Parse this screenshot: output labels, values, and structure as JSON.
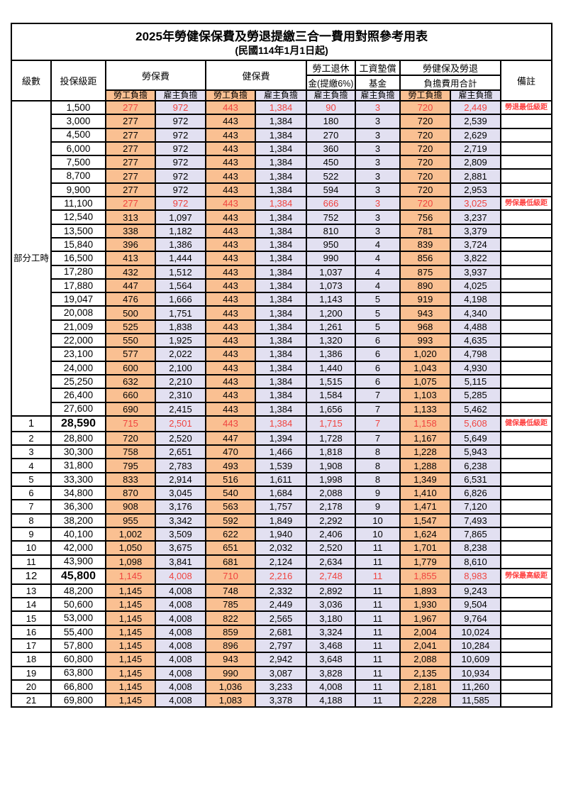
{
  "title": "2025年勞健保保費及勞退提繳三合一費用對照參考用表",
  "subtitle": "(民國114年1月1日起)",
  "header": {
    "level": "級數",
    "bracket": "投保級距",
    "labor_insurance": "勞保費",
    "health_insurance": "健保費",
    "pension_line1": "勞工退休",
    "pension_line2": "金(提繳6%)",
    "wage_fund_line1": "工資墊償",
    "wage_fund_line2": "基金",
    "total_line1": "勞健保及勞退",
    "total_line2": "負擔費用合計",
    "note": "備註",
    "employee_share": "勞工負擔",
    "employer_share": "雇主負擔"
  },
  "part_time_label": "部分工時",
  "part_time_rowspan": 23,
  "colors": {
    "employee_bg": "#fac092",
    "employer_bg": "#e2e0f1",
    "highlight_red": "#f0433f",
    "border": "#000000"
  },
  "rows": [
    {
      "level": "",
      "bracket": "1,500",
      "li_emp": "277",
      "li_er": "972",
      "hi_emp": "443",
      "hi_er": "1,384",
      "pen_er": "90",
      "fund_er": "3",
      "tot_emp": "720",
      "tot_er": "2,449",
      "note": "勞退最低級距",
      "red": true,
      "bold": false
    },
    {
      "level": "",
      "bracket": "3,000",
      "li_emp": "277",
      "li_er": "972",
      "hi_emp": "443",
      "hi_er": "1,384",
      "pen_er": "180",
      "fund_er": "3",
      "tot_emp": "720",
      "tot_er": "2,539",
      "note": "",
      "red": false,
      "bold": false
    },
    {
      "level": "",
      "bracket": "4,500",
      "li_emp": "277",
      "li_er": "972",
      "hi_emp": "443",
      "hi_er": "1,384",
      "pen_er": "270",
      "fund_er": "3",
      "tot_emp": "720",
      "tot_er": "2,629",
      "note": "",
      "red": false,
      "bold": false
    },
    {
      "level": "",
      "bracket": "6,000",
      "li_emp": "277",
      "li_er": "972",
      "hi_emp": "443",
      "hi_er": "1,384",
      "pen_er": "360",
      "fund_er": "3",
      "tot_emp": "720",
      "tot_er": "2,719",
      "note": "",
      "red": false,
      "bold": false
    },
    {
      "level": "",
      "bracket": "7,500",
      "li_emp": "277",
      "li_er": "972",
      "hi_emp": "443",
      "hi_er": "1,384",
      "pen_er": "450",
      "fund_er": "3",
      "tot_emp": "720",
      "tot_er": "2,809",
      "note": "",
      "red": false,
      "bold": false
    },
    {
      "level": "",
      "bracket": "8,700",
      "li_emp": "277",
      "li_er": "972",
      "hi_emp": "443",
      "hi_er": "1,384",
      "pen_er": "522",
      "fund_er": "3",
      "tot_emp": "720",
      "tot_er": "2,881",
      "note": "",
      "red": false,
      "bold": false
    },
    {
      "level": "",
      "bracket": "9,900",
      "li_emp": "277",
      "li_er": "972",
      "hi_emp": "443",
      "hi_er": "1,384",
      "pen_er": "594",
      "fund_er": "3",
      "tot_emp": "720",
      "tot_er": "2,953",
      "note": "",
      "red": false,
      "bold": false
    },
    {
      "level": "",
      "bracket": "11,100",
      "li_emp": "277",
      "li_er": "972",
      "hi_emp": "443",
      "hi_er": "1,384",
      "pen_er": "666",
      "fund_er": "3",
      "tot_emp": "720",
      "tot_er": "3,025",
      "note": "勞保最低級距",
      "red": true,
      "bold": false
    },
    {
      "level": "",
      "bracket": "12,540",
      "li_emp": "313",
      "li_er": "1,097",
      "hi_emp": "443",
      "hi_er": "1,384",
      "pen_er": "752",
      "fund_er": "3",
      "tot_emp": "756",
      "tot_er": "3,237",
      "note": "",
      "red": false,
      "bold": false
    },
    {
      "level": "",
      "bracket": "13,500",
      "li_emp": "338",
      "li_er": "1,182",
      "hi_emp": "443",
      "hi_er": "1,384",
      "pen_er": "810",
      "fund_er": "3",
      "tot_emp": "781",
      "tot_er": "3,379",
      "note": "",
      "red": false,
      "bold": false
    },
    {
      "level": "",
      "bracket": "15,840",
      "li_emp": "396",
      "li_er": "1,386",
      "hi_emp": "443",
      "hi_er": "1,384",
      "pen_er": "950",
      "fund_er": "4",
      "tot_emp": "839",
      "tot_er": "3,724",
      "note": "",
      "red": false,
      "bold": false
    },
    {
      "level": "",
      "bracket": "16,500",
      "li_emp": "413",
      "li_er": "1,444",
      "hi_emp": "443",
      "hi_er": "1,384",
      "pen_er": "990",
      "fund_er": "4",
      "tot_emp": "856",
      "tot_er": "3,822",
      "note": "",
      "red": false,
      "bold": false
    },
    {
      "level": "",
      "bracket": "17,280",
      "li_emp": "432",
      "li_er": "1,512",
      "hi_emp": "443",
      "hi_er": "1,384",
      "pen_er": "1,037",
      "fund_er": "4",
      "tot_emp": "875",
      "tot_er": "3,937",
      "note": "",
      "red": false,
      "bold": false
    },
    {
      "level": "",
      "bracket": "17,880",
      "li_emp": "447",
      "li_er": "1,564",
      "hi_emp": "443",
      "hi_er": "1,384",
      "pen_er": "1,073",
      "fund_er": "4",
      "tot_emp": "890",
      "tot_er": "4,025",
      "note": "",
      "red": false,
      "bold": false
    },
    {
      "level": "",
      "bracket": "19,047",
      "li_emp": "476",
      "li_er": "1,666",
      "hi_emp": "443",
      "hi_er": "1,384",
      "pen_er": "1,143",
      "fund_er": "5",
      "tot_emp": "919",
      "tot_er": "4,198",
      "note": "",
      "red": false,
      "bold": false
    },
    {
      "level": "",
      "bracket": "20,008",
      "li_emp": "500",
      "li_er": "1,751",
      "hi_emp": "443",
      "hi_er": "1,384",
      "pen_er": "1,200",
      "fund_er": "5",
      "tot_emp": "943",
      "tot_er": "4,340",
      "note": "",
      "red": false,
      "bold": false
    },
    {
      "level": "",
      "bracket": "21,009",
      "li_emp": "525",
      "li_er": "1,838",
      "hi_emp": "443",
      "hi_er": "1,384",
      "pen_er": "1,261",
      "fund_er": "5",
      "tot_emp": "968",
      "tot_er": "4,488",
      "note": "",
      "red": false,
      "bold": false
    },
    {
      "level": "",
      "bracket": "22,000",
      "li_emp": "550",
      "li_er": "1,925",
      "hi_emp": "443",
      "hi_er": "1,384",
      "pen_er": "1,320",
      "fund_er": "6",
      "tot_emp": "993",
      "tot_er": "4,635",
      "note": "",
      "red": false,
      "bold": false
    },
    {
      "level": "",
      "bracket": "23,100",
      "li_emp": "577",
      "li_er": "2,022",
      "hi_emp": "443",
      "hi_er": "1,384",
      "pen_er": "1,386",
      "fund_er": "6",
      "tot_emp": "1,020",
      "tot_er": "4,798",
      "note": "",
      "red": false,
      "bold": false
    },
    {
      "level": "",
      "bracket": "24,000",
      "li_emp": "600",
      "li_er": "2,100",
      "hi_emp": "443",
      "hi_er": "1,384",
      "pen_er": "1,440",
      "fund_er": "6",
      "tot_emp": "1,043",
      "tot_er": "4,930",
      "note": "",
      "red": false,
      "bold": false
    },
    {
      "level": "",
      "bracket": "25,250",
      "li_emp": "632",
      "li_er": "2,210",
      "hi_emp": "443",
      "hi_er": "1,384",
      "pen_er": "1,515",
      "fund_er": "6",
      "tot_emp": "1,075",
      "tot_er": "5,115",
      "note": "",
      "red": false,
      "bold": false
    },
    {
      "level": "",
      "bracket": "26,400",
      "li_emp": "660",
      "li_er": "2,310",
      "hi_emp": "443",
      "hi_er": "1,384",
      "pen_er": "1,584",
      "fund_er": "7",
      "tot_emp": "1,103",
      "tot_er": "5,285",
      "note": "",
      "red": false,
      "bold": false
    },
    {
      "level": "",
      "bracket": "27,600",
      "li_emp": "690",
      "li_er": "2,415",
      "hi_emp": "443",
      "hi_er": "1,384",
      "pen_er": "1,656",
      "fund_er": "7",
      "tot_emp": "1,133",
      "tot_er": "5,462",
      "note": "",
      "red": false,
      "bold": false
    },
    {
      "level": "1",
      "bracket": "28,590",
      "li_emp": "715",
      "li_er": "2,501",
      "hi_emp": "443",
      "hi_er": "1,384",
      "pen_er": "1,715",
      "fund_er": "7",
      "tot_emp": "1,158",
      "tot_er": "5,608",
      "note": "健保最低級距",
      "red": true,
      "bold": true
    },
    {
      "level": "2",
      "bracket": "28,800",
      "li_emp": "720",
      "li_er": "2,520",
      "hi_emp": "447",
      "hi_er": "1,394",
      "pen_er": "1,728",
      "fund_er": "7",
      "tot_emp": "1,167",
      "tot_er": "5,649",
      "note": "",
      "red": false,
      "bold": false
    },
    {
      "level": "3",
      "bracket": "30,300",
      "li_emp": "758",
      "li_er": "2,651",
      "hi_emp": "470",
      "hi_er": "1,466",
      "pen_er": "1,818",
      "fund_er": "8",
      "tot_emp": "1,228",
      "tot_er": "5,943",
      "note": "",
      "red": false,
      "bold": false
    },
    {
      "level": "4",
      "bracket": "31,800",
      "li_emp": "795",
      "li_er": "2,783",
      "hi_emp": "493",
      "hi_er": "1,539",
      "pen_er": "1,908",
      "fund_er": "8",
      "tot_emp": "1,288",
      "tot_er": "6,238",
      "note": "",
      "red": false,
      "bold": false
    },
    {
      "level": "5",
      "bracket": "33,300",
      "li_emp": "833",
      "li_er": "2,914",
      "hi_emp": "516",
      "hi_er": "1,611",
      "pen_er": "1,998",
      "fund_er": "8",
      "tot_emp": "1,349",
      "tot_er": "6,531",
      "note": "",
      "red": false,
      "bold": false
    },
    {
      "level": "6",
      "bracket": "34,800",
      "li_emp": "870",
      "li_er": "3,045",
      "hi_emp": "540",
      "hi_er": "1,684",
      "pen_er": "2,088",
      "fund_er": "9",
      "tot_emp": "1,410",
      "tot_er": "6,826",
      "note": "",
      "red": false,
      "bold": false
    },
    {
      "level": "7",
      "bracket": "36,300",
      "li_emp": "908",
      "li_er": "3,176",
      "hi_emp": "563",
      "hi_er": "1,757",
      "pen_er": "2,178",
      "fund_er": "9",
      "tot_emp": "1,471",
      "tot_er": "7,120",
      "note": "",
      "red": false,
      "bold": false
    },
    {
      "level": "8",
      "bracket": "38,200",
      "li_emp": "955",
      "li_er": "3,342",
      "hi_emp": "592",
      "hi_er": "1,849",
      "pen_er": "2,292",
      "fund_er": "10",
      "tot_emp": "1,547",
      "tot_er": "7,493",
      "note": "",
      "red": false,
      "bold": false
    },
    {
      "level": "9",
      "bracket": "40,100",
      "li_emp": "1,002",
      "li_er": "3,509",
      "hi_emp": "622",
      "hi_er": "1,940",
      "pen_er": "2,406",
      "fund_er": "10",
      "tot_emp": "1,624",
      "tot_er": "7,865",
      "note": "",
      "red": false,
      "bold": false
    },
    {
      "level": "10",
      "bracket": "42,000",
      "li_emp": "1,050",
      "li_er": "3,675",
      "hi_emp": "651",
      "hi_er": "2,032",
      "pen_er": "2,520",
      "fund_er": "11",
      "tot_emp": "1,701",
      "tot_er": "8,238",
      "note": "",
      "red": false,
      "bold": false
    },
    {
      "level": "11",
      "bracket": "43,900",
      "li_emp": "1,098",
      "li_er": "3,841",
      "hi_emp": "681",
      "hi_er": "2,124",
      "pen_er": "2,634",
      "fund_er": "11",
      "tot_emp": "1,779",
      "tot_er": "8,610",
      "note": "",
      "red": false,
      "bold": false
    },
    {
      "level": "12",
      "bracket": "45,800",
      "li_emp": "1,145",
      "li_er": "4,008",
      "hi_emp": "710",
      "hi_er": "2,216",
      "pen_er": "2,748",
      "fund_er": "11",
      "tot_emp": "1,855",
      "tot_er": "8,983",
      "note": "勞保最高級距",
      "red": true,
      "bold": true
    },
    {
      "level": "13",
      "bracket": "48,200",
      "li_emp": "1,145",
      "li_er": "4,008",
      "hi_emp": "748",
      "hi_er": "2,332",
      "pen_er": "2,892",
      "fund_er": "11",
      "tot_emp": "1,893",
      "tot_er": "9,243",
      "note": "",
      "red": false,
      "bold": false
    },
    {
      "level": "14",
      "bracket": "50,600",
      "li_emp": "1,145",
      "li_er": "4,008",
      "hi_emp": "785",
      "hi_er": "2,449",
      "pen_er": "3,036",
      "fund_er": "11",
      "tot_emp": "1,930",
      "tot_er": "9,504",
      "note": "",
      "red": false,
      "bold": false
    },
    {
      "level": "15",
      "bracket": "53,000",
      "li_emp": "1,145",
      "li_er": "4,008",
      "hi_emp": "822",
      "hi_er": "2,565",
      "pen_er": "3,180",
      "fund_er": "11",
      "tot_emp": "1,967",
      "tot_er": "9,764",
      "note": "",
      "red": false,
      "bold": false
    },
    {
      "level": "16",
      "bracket": "55,400",
      "li_emp": "1,145",
      "li_er": "4,008",
      "hi_emp": "859",
      "hi_er": "2,681",
      "pen_er": "3,324",
      "fund_er": "11",
      "tot_emp": "2,004",
      "tot_er": "10,024",
      "note": "",
      "red": false,
      "bold": false
    },
    {
      "level": "17",
      "bracket": "57,800",
      "li_emp": "1,145",
      "li_er": "4,008",
      "hi_emp": "896",
      "hi_er": "2,797",
      "pen_er": "3,468",
      "fund_er": "11",
      "tot_emp": "2,041",
      "tot_er": "10,284",
      "note": "",
      "red": false,
      "bold": false
    },
    {
      "level": "18",
      "bracket": "60,800",
      "li_emp": "1,145",
      "li_er": "4,008",
      "hi_emp": "943",
      "hi_er": "2,942",
      "pen_er": "3,648",
      "fund_er": "11",
      "tot_emp": "2,088",
      "tot_er": "10,609",
      "note": "",
      "red": false,
      "bold": false
    },
    {
      "level": "19",
      "bracket": "63,800",
      "li_emp": "1,145",
      "li_er": "4,008",
      "hi_emp": "990",
      "hi_er": "3,087",
      "pen_er": "3,828",
      "fund_er": "11",
      "tot_emp": "2,135",
      "tot_er": "10,934",
      "note": "",
      "red": false,
      "bold": false
    },
    {
      "level": "20",
      "bracket": "66,800",
      "li_emp": "1,145",
      "li_er": "4,008",
      "hi_emp": "1,036",
      "hi_er": "3,233",
      "pen_er": "4,008",
      "fund_er": "11",
      "tot_emp": "2,181",
      "tot_er": "11,260",
      "note": "",
      "red": false,
      "bold": false
    },
    {
      "level": "21",
      "bracket": "69,800",
      "li_emp": "1,145",
      "li_er": "4,008",
      "hi_emp": "1,083",
      "hi_er": "3,378",
      "pen_er": "4,188",
      "fund_er": "11",
      "tot_emp": "2,228",
      "tot_er": "11,585",
      "note": "",
      "red": false,
      "bold": false
    }
  ]
}
